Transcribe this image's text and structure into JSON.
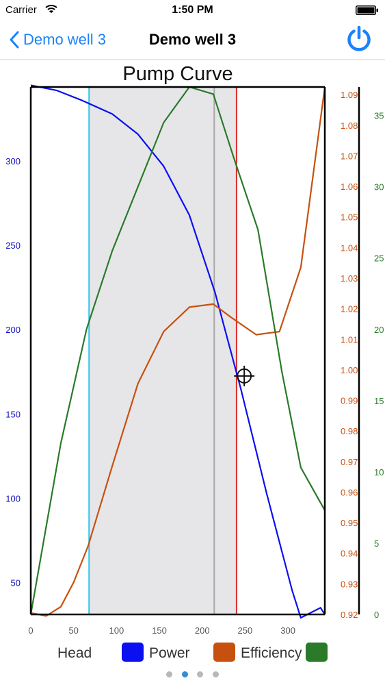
{
  "status_bar": {
    "carrier": "Carrier",
    "time": "1:50 PM"
  },
  "nav": {
    "back_label": "Demo well 3",
    "title": "Demo well 3"
  },
  "legend": [
    {
      "label": "Head",
      "color": "#0a10f0"
    },
    {
      "label": "Power",
      "color": "#c8500f"
    },
    {
      "label": "Efficiency",
      "color": "#2a7a2a"
    }
  ],
  "page_control": {
    "count": 4,
    "active_index": 1
  },
  "chart_data": {
    "type": "line",
    "title": "Pump Curve",
    "xlim": [
      0,
      343
    ],
    "xticks": [
      0,
      50,
      100,
      150,
      200,
      250,
      300
    ],
    "axes": {
      "left": {
        "color": "#1010c0",
        "ylim": [
          31,
          344
        ],
        "ticks": [
          50,
          100,
          150,
          200,
          250,
          300
        ]
      },
      "right1": {
        "color": "#c8500f",
        "ylim": [
          0.92,
          1.0925
        ],
        "ticks": [
          "0.92",
          "0.93",
          "0.94",
          "0.95",
          "0.96",
          "0.97",
          "0.98",
          "0.99",
          "1.00",
          "1.01",
          "1.02",
          "1.03",
          "1.04",
          "1.05",
          "1.06",
          "1.07",
          "1.08",
          "1.09"
        ]
      },
      "right2": {
        "color": "#2a7a2a",
        "ylim": [
          0,
          37
        ],
        "ticks": [
          0,
          5,
          10,
          15,
          20,
          25,
          30,
          35
        ]
      }
    },
    "series": [
      {
        "axis": "left",
        "color": "#0a10f0",
        "x": [
          0,
          30,
          60,
          95,
          125,
          155,
          185,
          215,
          245,
          275,
          305,
          315,
          338,
          343
        ],
        "y": [
          345,
          342,
          336,
          328,
          316,
          297,
          268,
          222,
          165,
          103,
          45,
          29,
          35,
          31
        ]
      },
      {
        "axis": "right1",
        "color": "#c8500f",
        "x": [
          0,
          18,
          35,
          50,
          67,
          95,
          125,
          155,
          185,
          213,
          232,
          263,
          290,
          315,
          343
        ],
        "y": [
          0.9205,
          0.9195,
          0.9225,
          0.9305,
          0.9425,
          0.9685,
          0.9955,
          1.0125,
          1.0205,
          1.0215,
          1.0175,
          1.0115,
          1.0125,
          1.0335,
          1.0925
        ]
      },
      {
        "axis": "right2",
        "color": "#2a7a2a",
        "x": [
          0,
          35,
          65,
          95,
          125,
          155,
          185,
          213,
          237,
          265,
          293,
          315,
          343
        ],
        "y": [
          0,
          12,
          20,
          25.5,
          30,
          34.5,
          37,
          36.5,
          32,
          27,
          17,
          10.3,
          7.3
        ]
      }
    ],
    "shaded_region": {
      "x_start": 68,
      "x_end": 240
    },
    "vlines": [
      {
        "x": 68,
        "color": "#2fc4e8"
      },
      {
        "x": 214,
        "color": "#a9a9a9"
      },
      {
        "x": 240,
        "color": "#e02828"
      }
    ],
    "marker": {
      "x": 249,
      "y": 172.5,
      "axis": "left",
      "symbol": "crosshair"
    }
  }
}
